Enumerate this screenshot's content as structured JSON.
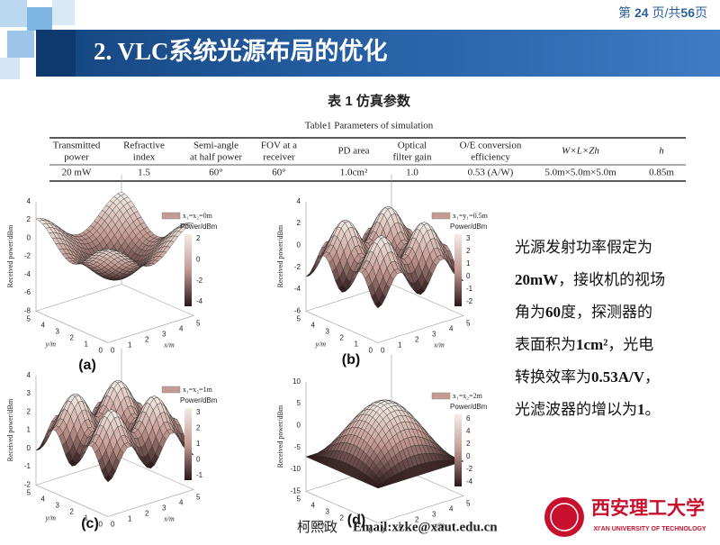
{
  "header": {
    "page_pre": "第",
    "page_current": "24",
    "page_mid": "页/共",
    "page_total": "56",
    "page_post": "页"
  },
  "title": "2. VLC系统光源布局的优化",
  "table": {
    "title": "表 1  仿真参数",
    "subtitle": "Table1    Parameters of simulation",
    "headers": [
      [
        "Transmitted",
        "power"
      ],
      [
        "Refractive",
        "index"
      ],
      [
        "Semi-angle",
        "at half power"
      ],
      [
        "FOV at a",
        "receiver"
      ],
      [
        "PD area"
      ],
      [
        "Optical",
        "filter gain"
      ],
      [
        "O/E conversion",
        "efficiency"
      ],
      [
        "W×L×Zh"
      ],
      [
        "h"
      ]
    ],
    "rows": [
      [
        "20 mW",
        "1.5",
        "60°",
        "60°",
        "1.0cm²",
        "1.0",
        "0.53 (A/W)",
        "5.0m×5.0m×5.0m",
        "0.85m"
      ]
    ]
  },
  "plots": [
    {
      "label": "(a)",
      "legend": "x₁=x₂=0m",
      "colorbar_title": "Power/dBm",
      "z_label": "Received power/dBm",
      "x_label": "x/m",
      "y_label": "y/m",
      "zticks": [
        "4",
        "2",
        "0",
        "-2",
        "-4",
        "-6",
        "-8"
      ],
      "colorbar_ticks": [
        "2",
        "0",
        "-2",
        "-4"
      ],
      "xticks": [
        "0",
        "1",
        "2",
        "3",
        "4",
        "5"
      ],
      "yticks": [
        "0",
        "1",
        "2",
        "3",
        "4",
        "5"
      ]
    },
    {
      "label": "(b)",
      "legend": "x₁=y₁=0.5m",
      "colorbar_title": "Power/dBm",
      "z_label": "Received power/dBm",
      "x_label": "x/m",
      "y_label": "y/m",
      "zticks": [
        "4",
        "2",
        "0",
        "-2",
        "-4",
        "-6"
      ],
      "colorbar_ticks": [
        "3",
        "2",
        "1",
        "0",
        "-1",
        "-2"
      ],
      "xticks": [
        "0",
        "1",
        "2",
        "3",
        "4",
        "5"
      ],
      "yticks": [
        "0",
        "1",
        "2",
        "3",
        "4",
        "5"
      ]
    },
    {
      "label": "(c)",
      "legend": "x₁=x₂=1m",
      "colorbar_title": "Power/dBm",
      "z_label": "Received power/dBm",
      "x_label": "x/m",
      "y_label": "y/m",
      "zticks": [
        "4",
        "3",
        "2",
        "1",
        "0",
        "-1",
        "-2"
      ],
      "colorbar_ticks": [
        "3",
        "2",
        "1",
        "0",
        "-1"
      ],
      "xticks": [
        "0",
        "1",
        "2",
        "3",
        "4",
        "5"
      ],
      "yticks": [
        "0",
        "1",
        "2",
        "3",
        "4",
        "5"
      ]
    },
    {
      "label": "(d)",
      "legend": "x₁=x₂=2m",
      "colorbar_title": "Power/dBm",
      "z_label": "Received power/dBm",
      "x_label": "x/m",
      "y_label": "y/m",
      "zticks": [
        "10",
        "5",
        "0",
        "-5",
        "-10",
        "-15"
      ],
      "colorbar_ticks": [
        "6",
        "4",
        "2",
        "0",
        "-2",
        "-4"
      ],
      "xticks": [
        "0",
        "1",
        "2",
        "3",
        "4",
        "5"
      ],
      "yticks": [
        "0",
        "1",
        "2",
        "3",
        "4",
        "5"
      ]
    }
  ],
  "body": [
    [
      {
        "t": "光源发射功率假定为"
      }
    ],
    [
      {
        "t": "20mW",
        "b": true
      },
      {
        "t": "，接收机的视场"
      }
    ],
    [
      {
        "t": "角为"
      },
      {
        "t": "60",
        "b": true
      },
      {
        "t": "度，探测器的"
      }
    ],
    [
      {
        "t": "表面积为"
      },
      {
        "t": "1cm²",
        "b": true
      },
      {
        "t": "，光电"
      }
    ],
    [
      {
        "t": "转换效率为"
      },
      {
        "t": "0.53A/V",
        "b": true
      },
      {
        "t": "，"
      }
    ],
    [
      {
        "t": "光滤波器的增以为"
      },
      {
        "t": "1",
        "b": true
      },
      {
        "t": "。"
      }
    ]
  ],
  "footer": {
    "author": "柯熙政",
    "email": "Email:xzke@xaut.edu.cn",
    "logo_name": "西安理工大学",
    "logo_en": "XI'AN UNIVERSITY OF TECHNOLOGY"
  }
}
